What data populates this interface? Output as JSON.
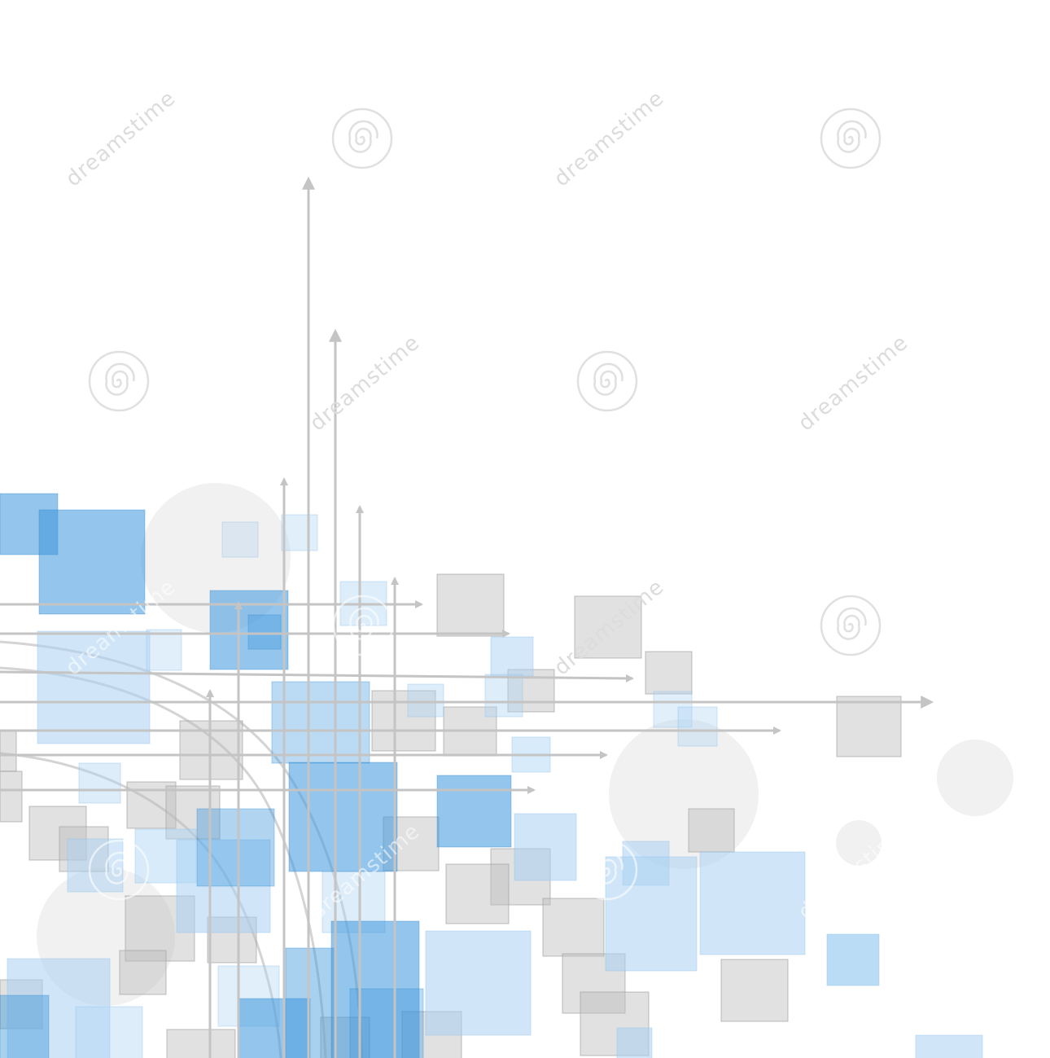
{
  "image": {
    "subject": "abstract-tech-squares-and-arrows",
    "colors": {
      "background": "#ffffff",
      "blue": "#3d96dc",
      "blue_light": "#a9d2f3",
      "gray": "#bdbdbd",
      "gray_light": "#e6e6e6",
      "arrow": "#c4c4c4",
      "circle": "#efefef",
      "watermark": "#dcdcdc"
    },
    "watermark": {
      "text": "dreamstime",
      "icon": "spiral-logo-icon"
    }
  }
}
